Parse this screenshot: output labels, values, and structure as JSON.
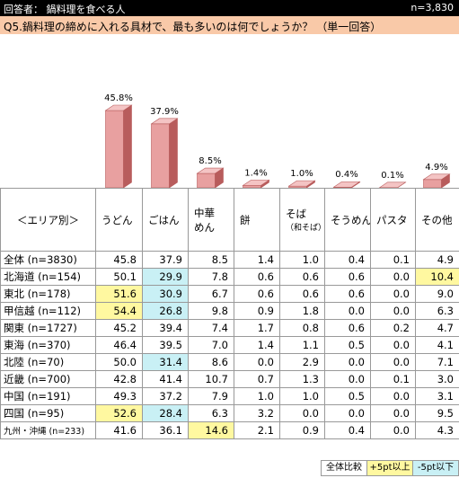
{
  "header": {
    "respondent": "回答者： 鍋料理を食べる人",
    "sample": "n=3,830",
    "question": "Q5.鍋料理の締めに入れる具材で、最も多いのは何でしょうか？ （単一回答）"
  },
  "colors": {
    "bar_front": "#e8a0a0",
    "bar_side": "#b85c5c",
    "bar_top": "#f4c4c4",
    "highlight_high": "#fff8a0",
    "highlight_low": "#c9f0f5"
  },
  "chart_data": {
    "type": "bar",
    "categories": [
      "うどん",
      "ごはん",
      "中華めん",
      "餅",
      "そば（和そば）",
      "そうめん",
      "パスタ",
      "その他"
    ],
    "values": [
      45.8,
      37.9,
      8.5,
      1.4,
      1.0,
      0.4,
      0.1,
      4.9
    ],
    "value_labels": [
      "45.8%",
      "37.9%",
      "8.5%",
      "1.4%",
      "1.0%",
      "0.4%",
      "0.1%",
      "4.9%"
    ],
    "ylim": [
      0,
      50
    ]
  },
  "table": {
    "corner_label": "＜エリア別＞",
    "columns": [
      {
        "main": "うどん"
      },
      {
        "main": "ごはん"
      },
      {
        "main": "中華",
        "main2": "めん"
      },
      {
        "main": "餅"
      },
      {
        "main": "そば",
        "sub": "（和そば）"
      },
      {
        "main": "そうめん"
      },
      {
        "main": "パスタ"
      },
      {
        "main": "その他"
      }
    ],
    "rows": [
      {
        "label": "全体 (n=3830)",
        "values": [
          "45.8",
          "37.9",
          "8.5",
          "1.4",
          "1.0",
          "0.4",
          "0.1",
          "4.9"
        ],
        "hl": [
          "",
          "",
          "",
          "",
          "",
          "",
          "",
          ""
        ]
      },
      {
        "label": "北海道 (n=154)",
        "values": [
          "50.1",
          "29.9",
          "7.8",
          "0.6",
          "0.6",
          "0.6",
          "0.0",
          "10.4"
        ],
        "hl": [
          "",
          "b",
          "",
          "",
          "",
          "",
          "",
          "y"
        ]
      },
      {
        "label": "東北 (n=178)",
        "values": [
          "51.6",
          "30.9",
          "6.7",
          "0.6",
          "0.6",
          "0.6",
          "0.0",
          "9.0"
        ],
        "hl": [
          "y",
          "b",
          "",
          "",
          "",
          "",
          "",
          ""
        ]
      },
      {
        "label": "甲信越 (n=112)",
        "values": [
          "54.4",
          "26.8",
          "9.8",
          "0.9",
          "1.8",
          "0.0",
          "0.0",
          "6.3"
        ],
        "hl": [
          "y",
          "b",
          "",
          "",
          "",
          "",
          "",
          ""
        ]
      },
      {
        "label": "関東 (n=1727)",
        "values": [
          "45.2",
          "39.4",
          "7.4",
          "1.7",
          "0.8",
          "0.6",
          "0.2",
          "4.7"
        ],
        "hl": [
          "",
          "",
          "",
          "",
          "",
          "",
          "",
          ""
        ]
      },
      {
        "label": "東海 (n=370)",
        "values": [
          "46.4",
          "39.5",
          "7.0",
          "1.4",
          "1.1",
          "0.5",
          "0.0",
          "4.1"
        ],
        "hl": [
          "",
          "",
          "",
          "",
          "",
          "",
          "",
          ""
        ]
      },
      {
        "label": "北陸 (n=70)",
        "values": [
          "50.0",
          "31.4",
          "8.6",
          "0.0",
          "2.9",
          "0.0",
          "0.0",
          "7.1"
        ],
        "hl": [
          "",
          "b",
          "",
          "",
          "",
          "",
          "",
          ""
        ]
      },
      {
        "label": "近畿 (n=700)",
        "values": [
          "42.8",
          "41.4",
          "10.7",
          "0.7",
          "1.3",
          "0.0",
          "0.1",
          "3.0"
        ],
        "hl": [
          "",
          "",
          "",
          "",
          "",
          "",
          "",
          ""
        ]
      },
      {
        "label": "中国 (n=191)",
        "values": [
          "49.3",
          "37.2",
          "7.9",
          "1.0",
          "1.0",
          "0.5",
          "0.0",
          "3.1"
        ],
        "hl": [
          "",
          "",
          "",
          "",
          "",
          "",
          "",
          ""
        ]
      },
      {
        "label": "四国 (n=95)",
        "values": [
          "52.6",
          "28.4",
          "6.3",
          "3.2",
          "0.0",
          "0.0",
          "0.0",
          "9.5"
        ],
        "hl": [
          "y",
          "b",
          "",
          "",
          "",
          "",
          "",
          ""
        ]
      },
      {
        "label": "九州・沖縄 (n=233)",
        "values": [
          "41.6",
          "36.1",
          "14.6",
          "2.1",
          "0.9",
          "0.4",
          "0.0",
          "4.3"
        ],
        "hl": [
          "",
          "",
          "y",
          "",
          "",
          "",
          "",
          ""
        ]
      }
    ]
  },
  "legend": {
    "overall": "全体比較",
    "high": "+5pt以上",
    "low": "-5pt以下"
  }
}
